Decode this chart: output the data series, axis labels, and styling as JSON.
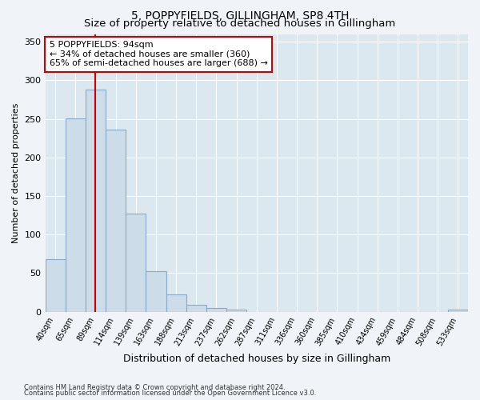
{
  "title": "5, POPPYFIELDS, GILLINGHAM, SP8 4TH",
  "subtitle": "Size of property relative to detached houses in Gillingham",
  "xlabel": "Distribution of detached houses by size in Gillingham",
  "ylabel": "Number of detached properties",
  "bar_labels": [
    "40sqm",
    "65sqm",
    "89sqm",
    "114sqm",
    "139sqm",
    "163sqm",
    "188sqm",
    "213sqm",
    "237sqm",
    "262sqm",
    "287sqm",
    "311sqm",
    "336sqm",
    "360sqm",
    "385sqm",
    "410sqm",
    "434sqm",
    "459sqm",
    "484sqm",
    "508sqm",
    "533sqm"
  ],
  "bar_values": [
    68,
    251,
    288,
    236,
    127,
    53,
    22,
    9,
    5,
    3,
    0,
    0,
    0,
    0,
    0,
    0,
    0,
    0,
    0,
    0,
    3
  ],
  "bar_color": "#ccdce8",
  "bar_edge_color": "#88aac8",
  "highlight_line_color": "#cc0000",
  "annotation_line1": "5 POPPYFIELDS: 94sqm",
  "annotation_line2": "← 34% of detached houses are smaller (360)",
  "annotation_line3": "65% of semi-detached houses are larger (688) →",
  "annotation_box_color": "#ffffff",
  "annotation_box_edge": "#cc0000",
  "ylim": [
    0,
    360
  ],
  "yticks": [
    0,
    50,
    100,
    150,
    200,
    250,
    300,
    350
  ],
  "footer_line1": "Contains HM Land Registry data © Crown copyright and database right 2024.",
  "footer_line2": "Contains public sector information licensed under the Open Government Licence v3.0.",
  "bg_color": "#f0f4f8",
  "plot_bg_color": "#dce8f0",
  "title_fontsize": 10,
  "subtitle_fontsize": 9.5
}
